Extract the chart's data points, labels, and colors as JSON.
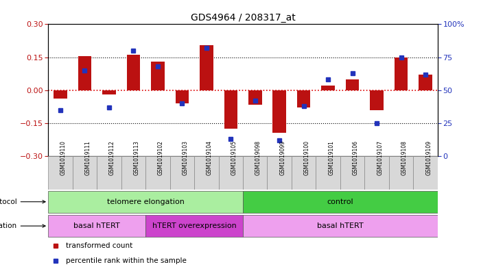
{
  "title": "GDS4964 / 208317_at",
  "samples": [
    "GSM1019110",
    "GSM1019111",
    "GSM1019112",
    "GSM1019113",
    "GSM1019102",
    "GSM1019103",
    "GSM1019104",
    "GSM1019105",
    "GSM1019098",
    "GSM1019099",
    "GSM1019100",
    "GSM1019101",
    "GSM1019106",
    "GSM1019107",
    "GSM1019108",
    "GSM1019109"
  ],
  "bar_values": [
    -0.04,
    0.155,
    -0.02,
    0.16,
    0.13,
    -0.06,
    0.205,
    -0.175,
    -0.065,
    -0.195,
    -0.08,
    0.02,
    0.05,
    -0.09,
    0.148,
    0.07
  ],
  "dot_values": [
    35,
    65,
    37,
    80,
    68,
    40,
    82,
    13,
    42,
    12,
    38,
    58,
    63,
    25,
    75,
    62
  ],
  "ylim": [
    -0.3,
    0.3
  ],
  "y2lim": [
    0,
    100
  ],
  "yticks": [
    -0.3,
    -0.15,
    0,
    0.15,
    0.3
  ],
  "y2ticks": [
    0,
    25,
    50,
    75,
    100
  ],
  "bar_color": "#bb1111",
  "dot_color": "#2233bb",
  "zero_line_color": "#dd0000",
  "protocol_telomere": {
    "label": "telomere elongation",
    "start": 0,
    "end": 8,
    "color": "#aaeea0"
  },
  "protocol_control": {
    "label": "control",
    "start": 8,
    "end": 16,
    "color": "#44cc44"
  },
  "geno_basal1": {
    "label": "basal hTERT",
    "start": 0,
    "end": 4,
    "color": "#eea0ee"
  },
  "geno_htert": {
    "label": "hTERT overexpression",
    "start": 4,
    "end": 8,
    "color": "#cc44cc"
  },
  "geno_basal2": {
    "label": "basal hTERT",
    "start": 8,
    "end": 16,
    "color": "#eea0ee"
  },
  "legend_items": [
    {
      "label": "transformed count",
      "color": "#bb1111"
    },
    {
      "label": "percentile rank within the sample",
      "color": "#2233bb"
    }
  ]
}
